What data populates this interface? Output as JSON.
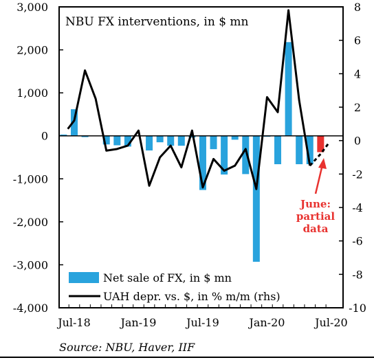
{
  "chart_data": {
    "type": "bar+line",
    "title": "NBU FX interventions, in $ mn",
    "x_tick_labels": [
      "Jul-18",
      "Jan-19",
      "Jul-19",
      "Jan-20",
      "Jul-20"
    ],
    "left_axis": {
      "ylim": [
        -4000,
        3000
      ],
      "ticks": [
        3000,
        2000,
        1000,
        0,
        -1000,
        -2000,
        -3000,
        -4000
      ],
      "tick_labels": [
        "3,000",
        "2,000",
        "1,000",
        "0",
        "-1,000",
        "-2,000",
        "-3,000",
        "-4,000"
      ]
    },
    "right_axis": {
      "ylim": [
        -10,
        8
      ],
      "ticks": [
        8,
        6,
        4,
        2,
        0,
        -2,
        -4,
        -6,
        -8,
        -10
      ],
      "tick_labels": [
        "8",
        "6",
        "4",
        "2",
        "0",
        "-2",
        "-4",
        "-6",
        "-8",
        "-10"
      ]
    },
    "months": [
      "Jun-18",
      "Jul-18",
      "Aug-18",
      "Sep-18",
      "Oct-18",
      "Nov-18",
      "Dec-18",
      "Jan-19",
      "Feb-19",
      "Mar-19",
      "Apr-19",
      "May-19",
      "Jun-19",
      "Jul-19",
      "Aug-19",
      "Sep-19",
      "Oct-19",
      "Nov-19",
      "Dec-19",
      "Jan-20",
      "Feb-20",
      "Mar-20",
      "Apr-20",
      "May-20",
      "Jun-20"
    ],
    "series": [
      {
        "name": "Net sale of FX, in $ mn",
        "type": "bar",
        "axis": "left",
        "color": "#29a3dd",
        "values": [
          30,
          620,
          -30,
          -10,
          -200,
          -220,
          -250,
          -10,
          -340,
          -150,
          -230,
          -230,
          -40,
          -1260,
          -310,
          -900,
          -90,
          -890,
          -2930,
          -20,
          -660,
          2180,
          -660,
          -660,
          -380
        ],
        "highlight_last_color": "#e8322f"
      },
      {
        "name": "UAH depr. vs. $, in % m/m (rhs)",
        "type": "line",
        "axis": "right",
        "color": "#000000",
        "values": [
          0.7,
          1.2,
          4.2,
          2.5,
          -0.6,
          -0.5,
          -0.3,
          0.6,
          -2.7,
          -1.0,
          -0.3,
          -1.6,
          0.6,
          -2.8,
          -1.1,
          -1.8,
          -1.5,
          -0.5,
          -2.9,
          2.6,
          1.7,
          7.8,
          2.4,
          -1.5,
          -0.8,
          -0.2
        ],
        "x_positions": [
          -0.6,
          0.0,
          1.0,
          2.0,
          3.0,
          4.0,
          5.0,
          6.0,
          7.0,
          8.0,
          9.0,
          10.0,
          11.0,
          12.0,
          13.0,
          14.0,
          15.0,
          16.0,
          17.0,
          18.0,
          19.0,
          20.0,
          21.0,
          22.0,
          23.0,
          23.7
        ],
        "partial_from_index": 23
      }
    ],
    "legend": {
      "placement": "bottom-left",
      "bar_label": "Net sale of FX, in $ mn",
      "line_label": "UAH depr. vs. $, in % m/m (rhs)"
    },
    "annotation": {
      "lines": [
        "June:",
        "partial",
        "data"
      ],
      "color": "#e8322f"
    },
    "source": "Source: NBU, Haver, IIF"
  }
}
